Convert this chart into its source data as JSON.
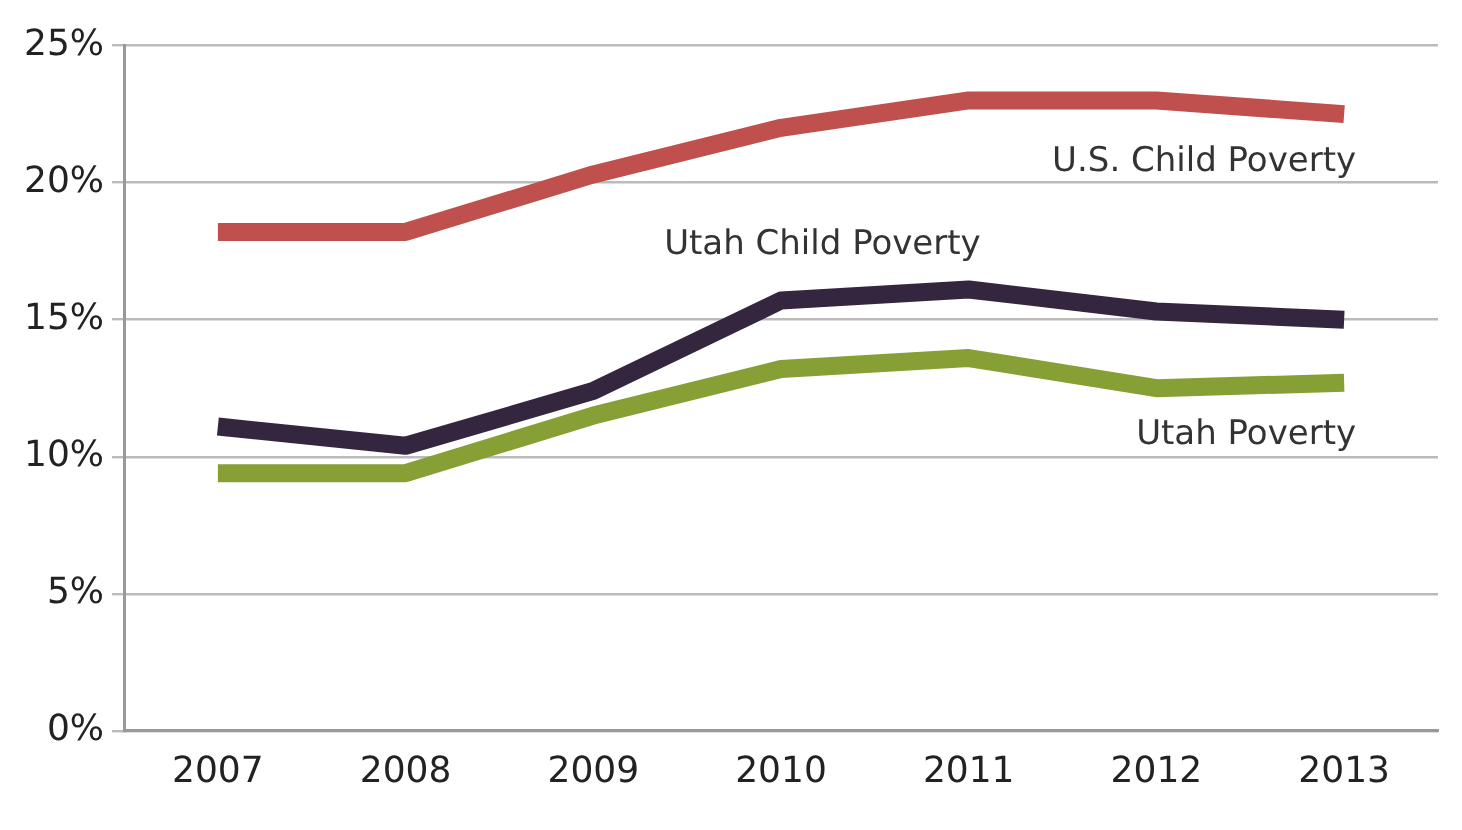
{
  "chart_data": {
    "type": "line",
    "categories": [
      "2007",
      "2008",
      "2009",
      "2010",
      "2011",
      "2012",
      "2013"
    ],
    "series": [
      {
        "name": "U.S. Child Poverty",
        "color": "#c0504d",
        "values": [
          18.2,
          18.2,
          20.3,
          22.0,
          23.0,
          23.0,
          22.5
        ]
      },
      {
        "name": "Utah Child Poverty",
        "color": "#34263f",
        "values": [
          11.1,
          10.4,
          12.4,
          15.7,
          16.1,
          15.3,
          15.0
        ]
      },
      {
        "name": "Utah Poverty",
        "color": "#86a035",
        "values": [
          9.4,
          9.4,
          11.5,
          13.2,
          13.6,
          12.5,
          12.7
        ]
      }
    ],
    "ylim": [
      0,
      25
    ],
    "yticks": [
      {
        "value": 0,
        "label": "0%"
      },
      {
        "value": 5,
        "label": "5%"
      },
      {
        "value": 10,
        "label": "10%"
      },
      {
        "value": 15,
        "label": "15%"
      },
      {
        "value": 20,
        "label": "20%"
      },
      {
        "value": 25,
        "label": "25%"
      }
    ],
    "grid": "y",
    "legend": false,
    "marker": "none",
    "line_style": "solid"
  }
}
